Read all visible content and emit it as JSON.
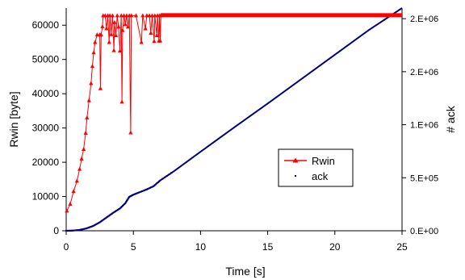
{
  "chart_data": {
    "type": "line",
    "xlabel": "Time [s]",
    "ylabel": "Rwin [byte]",
    "y2label": "# ack",
    "xlim": [
      0,
      25
    ],
    "ylim": [
      0,
      65000
    ],
    "y2lim": [
      0,
      2100000
    ],
    "x_ticks": [
      "0",
      "5",
      "10",
      "15",
      "20",
      "25"
    ],
    "y_ticks": [
      "0",
      "10000",
      "20000",
      "30000",
      "40000",
      "50000",
      "60000"
    ],
    "y2_ticks": [
      "0.E+00",
      "5.E+05",
      "1.E+06",
      "2.E+06",
      "2.E+06"
    ],
    "y2_tick_values": [
      0,
      500000,
      1000000,
      1500000,
      2000000
    ],
    "grid": false,
    "legend_position": "center-right",
    "series": [
      {
        "name": "Rwin",
        "axis": "left",
        "color": "#ff0000",
        "marker": "triangle",
        "points": [
          [
            0.05,
            5800
          ],
          [
            0.3,
            7800
          ],
          [
            0.55,
            11500
          ],
          [
            0.8,
            14500
          ],
          [
            1.0,
            18000
          ],
          [
            1.15,
            21000
          ],
          [
            1.3,
            23800
          ],
          [
            1.45,
            28500
          ],
          [
            1.55,
            33000
          ],
          [
            1.7,
            38000
          ],
          [
            1.85,
            43000
          ],
          [
            1.95,
            48000
          ],
          [
            2.05,
            52000
          ],
          [
            2.15,
            55000
          ],
          [
            2.3,
            57200
          ],
          [
            2.5,
            57200
          ],
          [
            2.55,
            41500
          ],
          [
            2.6,
            57200
          ],
          [
            2.7,
            59600
          ],
          [
            2.75,
            62800
          ],
          [
            2.9,
            62800
          ],
          [
            3.0,
            59000
          ],
          [
            3.1,
            62800
          ],
          [
            3.2,
            55000
          ],
          [
            3.25,
            62800
          ],
          [
            3.35,
            57300
          ],
          [
            3.45,
            62800
          ],
          [
            3.55,
            52600
          ],
          [
            3.6,
            60800
          ],
          [
            3.7,
            57000
          ],
          [
            3.8,
            62800
          ],
          [
            3.9,
            59500
          ],
          [
            4.0,
            52500
          ],
          [
            4.1,
            62800
          ],
          [
            4.15,
            37600
          ],
          [
            4.2,
            58500
          ],
          [
            4.3,
            62800
          ],
          [
            4.4,
            60200
          ],
          [
            4.5,
            62800
          ],
          [
            4.6,
            59500
          ],
          [
            4.7,
            62800
          ],
          [
            4.8,
            28600
          ],
          [
            4.85,
            62800
          ],
          [
            5.2,
            62800
          ],
          [
            5.6,
            55000
          ],
          [
            5.7,
            62800
          ],
          [
            5.9,
            59000
          ],
          [
            6.0,
            62800
          ],
          [
            6.2,
            62800
          ],
          [
            6.3,
            57700
          ],
          [
            6.4,
            62800
          ],
          [
            6.55,
            55300
          ],
          [
            6.6,
            62800
          ],
          [
            6.75,
            57000
          ],
          [
            6.8,
            62800
          ],
          [
            6.9,
            55400
          ],
          [
            6.95,
            62800
          ],
          [
            7.0,
            55400
          ],
          [
            7.05,
            62800
          ],
          [
            8.0,
            62800
          ],
          [
            10.0,
            62800
          ],
          [
            12.5,
            62800
          ],
          [
            15.0,
            62800
          ],
          [
            17.5,
            62800
          ],
          [
            20.0,
            62800
          ],
          [
            22.5,
            62800
          ],
          [
            25.0,
            62800
          ]
        ]
      },
      {
        "name": "ack",
        "axis": "right",
        "color": "#000080",
        "marker": "dot",
        "points": [
          [
            0.0,
            0
          ],
          [
            0.5,
            2000
          ],
          [
            1.0,
            8000
          ],
          [
            1.5,
            22000
          ],
          [
            2.0,
            45000
          ],
          [
            2.5,
            80000
          ],
          [
            3.0,
            125000
          ],
          [
            3.5,
            170000
          ],
          [
            4.0,
            210000
          ],
          [
            4.4,
            260000
          ],
          [
            4.7,
            320000
          ],
          [
            5.0,
            340000
          ],
          [
            5.5,
            365000
          ],
          [
            6.0,
            390000
          ],
          [
            6.5,
            420000
          ],
          [
            7.0,
            475000
          ],
          [
            8.0,
            560000
          ],
          [
            10.0,
            745000
          ],
          [
            12.5,
            975000
          ],
          [
            15.0,
            1200000
          ],
          [
            17.5,
            1430000
          ],
          [
            20.0,
            1660000
          ],
          [
            22.5,
            1890000
          ],
          [
            25.0,
            2100000
          ]
        ]
      }
    ]
  }
}
